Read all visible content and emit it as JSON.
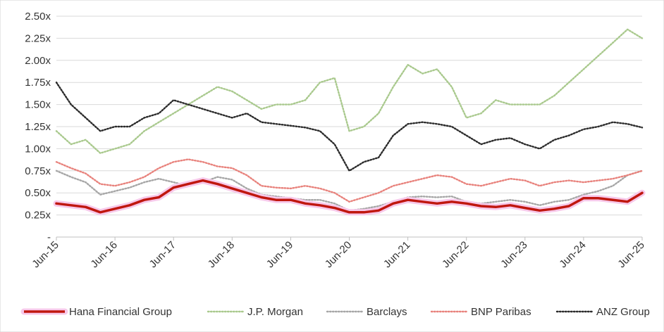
{
  "chart_data": {
    "type": "line",
    "x": [
      "Jun-15",
      "Sep-15",
      "Dec-15",
      "Mar-16",
      "Jun-16",
      "Sep-16",
      "Dec-16",
      "Mar-17",
      "Jun-17",
      "Sep-17",
      "Dec-17",
      "Mar-18",
      "Jun-18",
      "Sep-18",
      "Dec-18",
      "Mar-19",
      "Jun-19",
      "Sep-19",
      "Dec-19",
      "Mar-20",
      "Jun-20",
      "Sep-20",
      "Dec-20",
      "Mar-21",
      "Jun-21",
      "Sep-21",
      "Dec-21",
      "Mar-22",
      "Jun-22",
      "Sep-22",
      "Dec-22",
      "Mar-23",
      "Jun-23",
      "Sep-23",
      "Dec-23",
      "Mar-24",
      "Jun-24",
      "Sep-24",
      "Dec-24",
      "Mar-25",
      "Jun-25"
    ],
    "x_tick_labels": [
      "Jun-15",
      "Jun-16",
      "Jun-17",
      "Jun-18",
      "Jun-19",
      "Jun-20",
      "Jun-21",
      "Jun-22",
      "Jun-23",
      "Jun-24",
      "Jun-25"
    ],
    "y_tick_labels": [
      "-",
      "0.25x",
      "0.50x",
      "0.75x",
      "1.00x",
      "1.25x",
      "1.50x",
      "1.75x",
      "2.00x",
      "2.25x",
      "2.50x"
    ],
    "ylim": [
      0,
      2.5
    ],
    "grid": true,
    "legend_position": "bottom",
    "series": [
      {
        "name": "Hana Financial Group",
        "color": "#c0170f",
        "style": "solid",
        "values": [
          0.38,
          0.36,
          0.34,
          0.28,
          0.32,
          0.36,
          0.42,
          0.45,
          0.56,
          0.6,
          0.64,
          0.6,
          0.55,
          0.5,
          0.45,
          0.42,
          0.42,
          0.38,
          0.36,
          0.33,
          0.28,
          0.28,
          0.3,
          0.38,
          0.42,
          0.4,
          0.38,
          0.4,
          0.38,
          0.35,
          0.34,
          0.36,
          0.33,
          0.3,
          0.32,
          0.35,
          0.44,
          0.44,
          0.42,
          0.4,
          0.5
        ]
      },
      {
        "name": "J.P. Morgan",
        "color": "#a9c98d",
        "style": "dotted",
        "values": [
          1.2,
          1.05,
          1.1,
          0.95,
          1.0,
          1.05,
          1.2,
          1.3,
          1.4,
          1.5,
          1.6,
          1.7,
          1.65,
          1.55,
          1.45,
          1.5,
          1.5,
          1.55,
          1.75,
          1.8,
          1.2,
          1.25,
          1.4,
          1.7,
          1.95,
          1.85,
          1.9,
          1.7,
          1.35,
          1.4,
          1.55,
          1.5,
          1.5,
          1.5,
          1.6,
          1.75,
          1.9,
          2.05,
          2.2,
          2.35,
          2.25
        ]
      },
      {
        "name": "Barclays",
        "color": "#a6a6a6",
        "style": "dotted",
        "values": [
          0.75,
          0.68,
          0.62,
          0.48,
          0.52,
          0.56,
          0.62,
          0.66,
          0.62,
          0.58,
          0.62,
          0.68,
          0.65,
          0.55,
          0.48,
          0.46,
          0.44,
          0.42,
          0.42,
          0.38,
          0.3,
          0.32,
          0.35,
          0.4,
          0.45,
          0.46,
          0.45,
          0.46,
          0.4,
          0.38,
          0.4,
          0.42,
          0.4,
          0.36,
          0.4,
          0.42,
          0.48,
          0.52,
          0.58,
          0.7,
          0.75
        ]
      },
      {
        "name": "BNP Paribas",
        "color": "#e8827c",
        "style": "dotted",
        "values": [
          0.85,
          0.78,
          0.72,
          0.6,
          0.58,
          0.62,
          0.68,
          0.78,
          0.85,
          0.88,
          0.85,
          0.8,
          0.78,
          0.7,
          0.58,
          0.56,
          0.55,
          0.58,
          0.55,
          0.5,
          0.4,
          0.45,
          0.5,
          0.58,
          0.62,
          0.66,
          0.7,
          0.68,
          0.6,
          0.58,
          0.62,
          0.66,
          0.64,
          0.58,
          0.62,
          0.64,
          0.62,
          0.64,
          0.66,
          0.7,
          0.75
        ]
      },
      {
        "name": "ANZ Group",
        "color": "#2b2b2b",
        "style": "dotted",
        "values": [
          1.75,
          1.5,
          1.35,
          1.2,
          1.25,
          1.25,
          1.35,
          1.4,
          1.55,
          1.5,
          1.45,
          1.4,
          1.35,
          1.4,
          1.3,
          1.28,
          1.26,
          1.24,
          1.2,
          1.05,
          0.75,
          0.85,
          0.9,
          1.15,
          1.28,
          1.3,
          1.28,
          1.25,
          1.15,
          1.05,
          1.1,
          1.12,
          1.05,
          1.0,
          1.1,
          1.15,
          1.22,
          1.25,
          1.3,
          1.28,
          1.24
        ]
      }
    ]
  }
}
